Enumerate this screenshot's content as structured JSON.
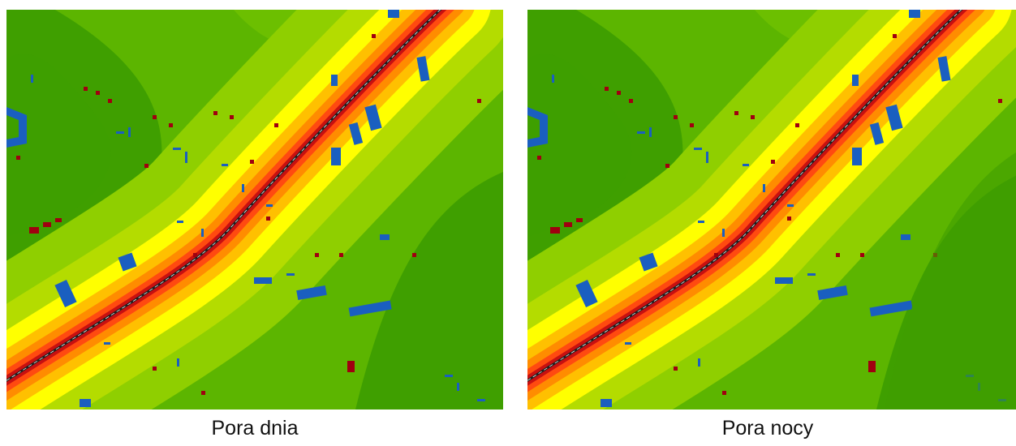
{
  "panels": [
    {
      "caption": "Pora dnia"
    },
    {
      "caption": "Pora nocy"
    }
  ]
}
